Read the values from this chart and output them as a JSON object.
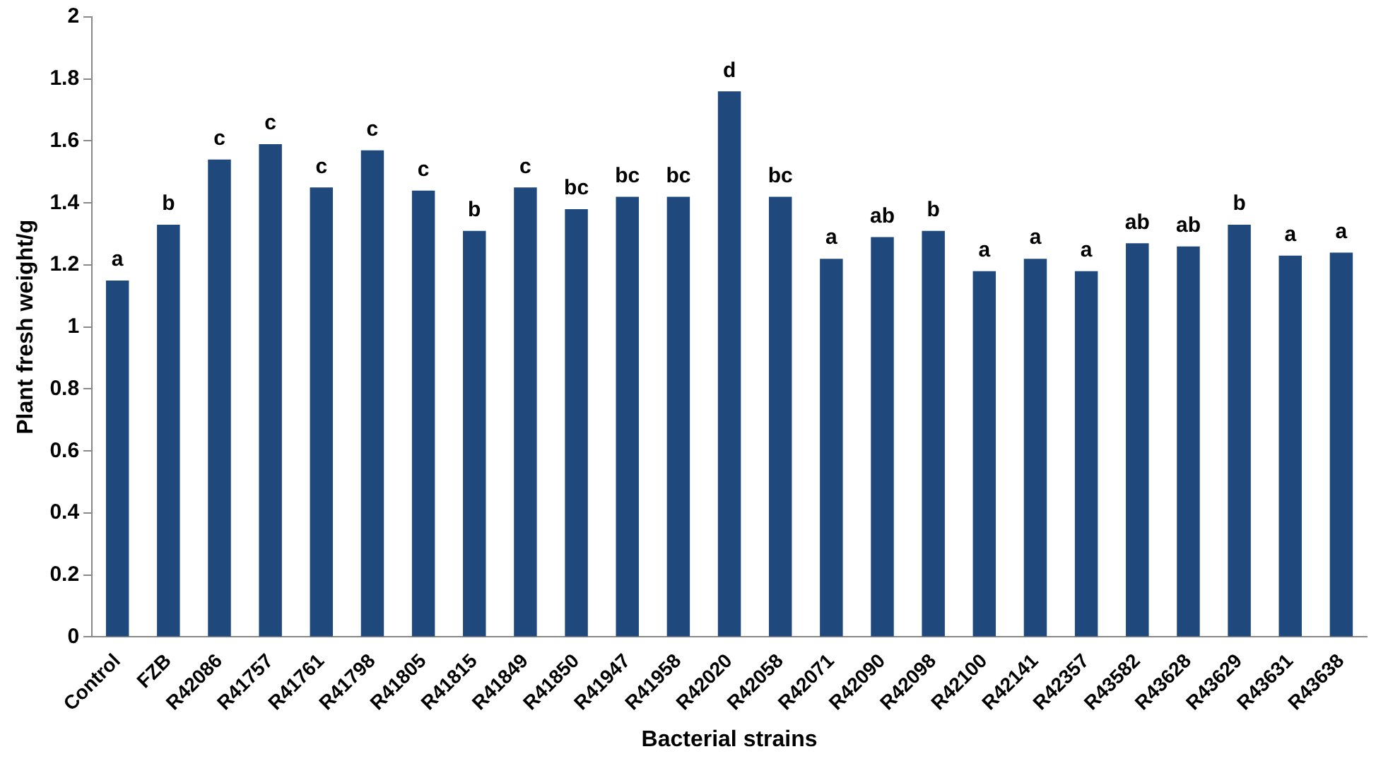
{
  "chart_data": {
    "type": "bar",
    "xlabel": "Bacterial strains",
    "ylabel": "Plant fresh weight/g",
    "categories": [
      "Control",
      "FZB",
      "R42086",
      "R41757",
      "R41761",
      "R41798",
      "R41805",
      "R41815",
      "R41849",
      "R41850",
      "R41947",
      "R41958",
      "R42020",
      "R42058",
      "R42071",
      "R42090",
      "R42098",
      "R42100",
      "R42141",
      "R42357",
      "R43582",
      "R43628",
      "R43629",
      "R43631",
      "R43638"
    ],
    "values": [
      1.15,
      1.33,
      1.54,
      1.59,
      1.45,
      1.57,
      1.44,
      1.31,
      1.45,
      1.38,
      1.42,
      1.42,
      1.76,
      1.42,
      1.22,
      1.29,
      1.31,
      1.18,
      1.22,
      1.18,
      1.27,
      1.26,
      1.33,
      1.23,
      1.24
    ],
    "color": "#1f497d",
    "ylim": [
      0,
      2
    ],
    "yticks": [
      0,
      0.2,
      0.4,
      0.6,
      0.8,
      1,
      1.2,
      1.4,
      1.6,
      1.8,
      2
    ],
    "grid": false,
    "legend": false,
    "annotations": [
      {
        "text": "a",
        "x": "Control",
        "y": 1.15
      },
      {
        "text": "b",
        "x": "FZB",
        "y": 1.33
      },
      {
        "text": "c",
        "x": "R42086",
        "y": 1.54
      },
      {
        "text": "c",
        "x": "R41757",
        "y": 1.59
      },
      {
        "text": "c",
        "x": "R41761",
        "y": 1.45
      },
      {
        "text": "c",
        "x": "R41798",
        "y": 1.57
      },
      {
        "text": "c",
        "x": "R41805",
        "y": 1.44
      },
      {
        "text": "b",
        "x": "R41815",
        "y": 1.31
      },
      {
        "text": "c",
        "x": "R41849",
        "y": 1.45
      },
      {
        "text": "bc",
        "x": "R41850",
        "y": 1.38
      },
      {
        "text": "bc",
        "x": "R41947",
        "y": 1.42
      },
      {
        "text": "bc",
        "x": "R41958",
        "y": 1.42
      },
      {
        "text": "d",
        "x": "R42020",
        "y": 1.76
      },
      {
        "text": "bc",
        "x": "R42058",
        "y": 1.42
      },
      {
        "text": "a",
        "x": "R42071",
        "y": 1.22
      },
      {
        "text": "ab",
        "x": "R42090",
        "y": 1.29
      },
      {
        "text": "b",
        "x": "R42098",
        "y": 1.31
      },
      {
        "text": "a",
        "x": "R42100",
        "y": 1.18
      },
      {
        "text": "a",
        "x": "R42141",
        "y": 1.22
      },
      {
        "text": "a",
        "x": "R42357",
        "y": 1.18
      },
      {
        "text": "ab",
        "x": "R43582",
        "y": 1.27
      },
      {
        "text": "ab",
        "x": "R43628",
        "y": 1.26
      },
      {
        "text": "b",
        "x": "R43629",
        "y": 1.33
      },
      {
        "text": "a",
        "x": "R43631",
        "y": 1.23
      },
      {
        "text": "a",
        "x": "R43638",
        "y": 1.24
      }
    ]
  }
}
